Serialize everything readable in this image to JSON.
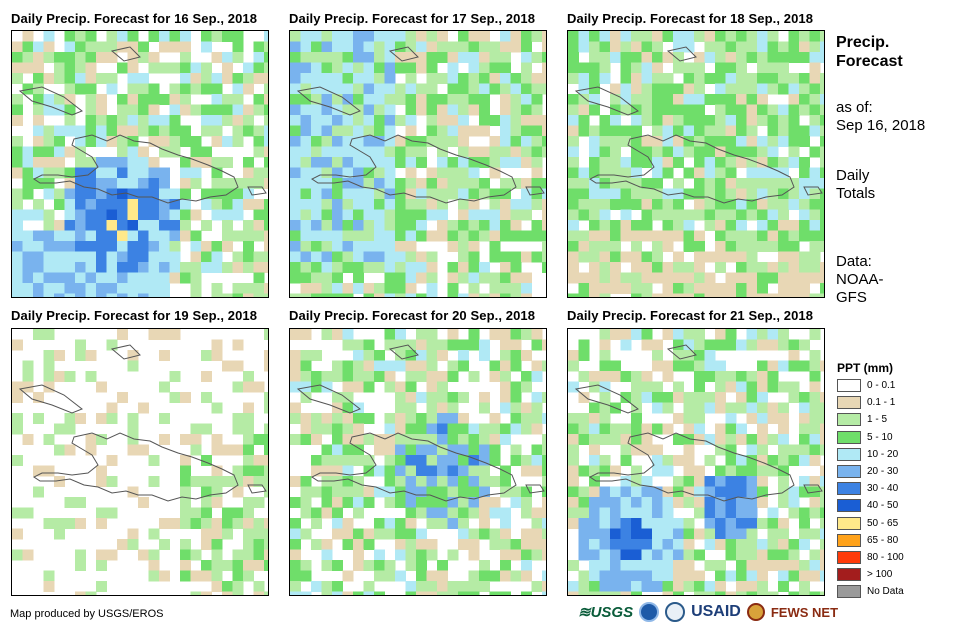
{
  "panels": [
    {
      "title": "Daily Precip. Forecast for 16 Sep., 2018",
      "seed": 16,
      "scheme": "wet-south"
    },
    {
      "title": "Daily Precip. Forecast for 17 Sep., 2018",
      "seed": 17,
      "scheme": "wet-west"
    },
    {
      "title": "Daily Precip. Forecast for 18 Sep., 2018",
      "seed": 18,
      "scheme": "moderate"
    },
    {
      "title": "Daily Precip. Forecast for 19 Sep., 2018",
      "seed": 19,
      "scheme": "dry"
    },
    {
      "title": "Daily Precip. Forecast for 20 Sep., 2018",
      "seed": 20,
      "scheme": "scattered"
    },
    {
      "title": "Daily Precip. Forecast for 21 Sep., 2018",
      "seed": 21,
      "scheme": "southwest"
    }
  ],
  "sidebar": {
    "heading_line1": "Precip.",
    "heading_line2": "Forecast",
    "asof_line1": "as of:",
    "asof_line2": "Sep 16, 2018",
    "totals_line1": "Daily",
    "totals_line2": "Totals",
    "data_line1": "Data:",
    "data_line2": "NOAA-",
    "data_line3": "GFS"
  },
  "legend": {
    "title": "PPT (mm)",
    "items": [
      {
        "label": "0 - 0.1",
        "color": "#ffffff"
      },
      {
        "label": "0.1 - 1",
        "color": "#e8d7b5"
      },
      {
        "label": "1 - 5",
        "color": "#b5eba5"
      },
      {
        "label": "5 - 10",
        "color": "#6fde6a"
      },
      {
        "label": "10 - 20",
        "color": "#b0e9f5"
      },
      {
        "label": "20 - 30",
        "color": "#79b3ee"
      },
      {
        "label": "30 - 40",
        "color": "#3c82e3"
      },
      {
        "label": "40 - 50",
        "color": "#1a5ed4"
      },
      {
        "label": "50 - 65",
        "color": "#ffe98a"
      },
      {
        "label": "65 - 80",
        "color": "#ffa21a"
      },
      {
        "label": "80 - 100",
        "color": "#ff3b0a"
      },
      {
        "label": "> 100",
        "color": "#a31d1d"
      },
      {
        "label": "No Data",
        "color": "#9a9a9a"
      }
    ]
  },
  "footer": {
    "credit": "Map produced by USGS/EROS",
    "logo_usgs": "≋USGS",
    "logo_usaid": "USAID",
    "logo_fews": "FEWS NET"
  }
}
